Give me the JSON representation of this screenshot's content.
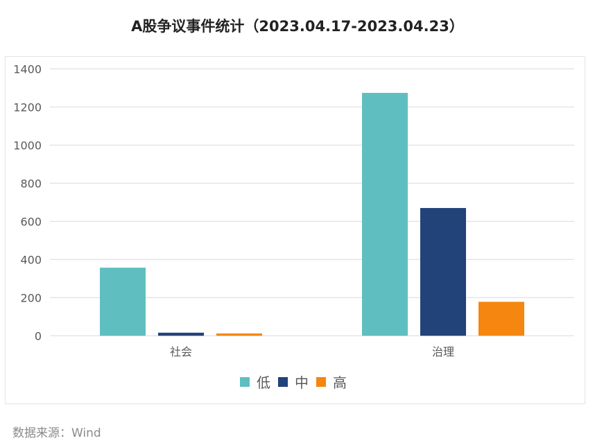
{
  "title": "A股争议事件统计（2023.04.17-2023.04.23）",
  "source": "数据来源：Wind",
  "chart_data": {
    "type": "bar",
    "title": "A股争议事件统计（2023.04.17-2023.04.23）",
    "categories": [
      "社会",
      "治理"
    ],
    "series": [
      {
        "name": "低",
        "color": "#5FBFC0",
        "values": [
          357,
          1274
        ]
      },
      {
        "name": "中",
        "color": "#22427A",
        "values": [
          16,
          670
        ]
      },
      {
        "name": "高",
        "color": "#F5860F",
        "values": [
          12,
          178
        ]
      }
    ],
    "ylim": [
      0,
      1400
    ],
    "yticks": [
      0,
      200,
      400,
      600,
      800,
      1000,
      1200,
      1400
    ],
    "grid": true,
    "legend": "bottom"
  }
}
